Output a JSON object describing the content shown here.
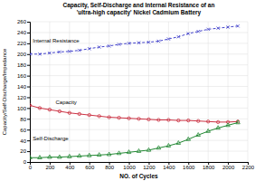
{
  "chart_data": {
    "type": "line",
    "title": "Capacity, Self-Discharge and Internal Resistance of an\n'ultra-high capacity' Nickel Cadmium Battery",
    "x_label": "NO. of Cycles",
    "y_label": "Capacity/Self-Discharge/Impedance",
    "x": [
      0,
      100,
      200,
      300,
      400,
      500,
      600,
      700,
      800,
      900,
      1000,
      1100,
      1200,
      1300,
      1400,
      1500,
      1600,
      1700,
      1800,
      1900,
      2000,
      2100
    ],
    "series": [
      {
        "name": "Internal Resistance",
        "color": "#4444cc",
        "marker": "x",
        "line_style": "dashed",
        "values": [
          200,
          200,
          202,
          204,
          205,
          207,
          210,
          213,
          215,
          218,
          220,
          221,
          222,
          224,
          228,
          232,
          238,
          242,
          246,
          248,
          250,
          252
        ]
      },
      {
        "name": "Capacity",
        "color": "#cc3344",
        "marker": "circle",
        "line_style": "solid",
        "values": [
          105,
          100,
          97,
          94,
          91,
          89,
          87,
          85,
          83,
          82,
          81,
          80,
          79,
          78,
          78,
          77,
          77,
          76,
          75,
          74,
          74,
          75
        ]
      },
      {
        "name": "Self-Discharge",
        "color": "#228833",
        "marker": "triangle",
        "line_style": "solid",
        "values": [
          8,
          8,
          9,
          9,
          10,
          11,
          12,
          13,
          14,
          16,
          18,
          20,
          22,
          26,
          30,
          35,
          42,
          50,
          57,
          63,
          68,
          73
        ]
      }
    ],
    "annotations": [
      {
        "text": "Internal Resistance",
        "x": 30,
        "y": 221
      },
      {
        "text": "Capacity",
        "x": 260,
        "y": 107
      },
      {
        "text": "Self-Discharge",
        "x": 30,
        "y": 40
      }
    ],
    "xlim": [
      0,
      2200
    ],
    "ylim": [
      0,
      260
    ],
    "xticks": [
      0,
      200,
      400,
      600,
      800,
      1000,
      1200,
      1400,
      1600,
      1800,
      2000,
      2200
    ],
    "yticks": [
      0,
      20,
      40,
      60,
      80,
      100,
      120,
      140,
      160,
      180,
      200,
      220,
      240,
      260
    ],
    "grid": true
  }
}
